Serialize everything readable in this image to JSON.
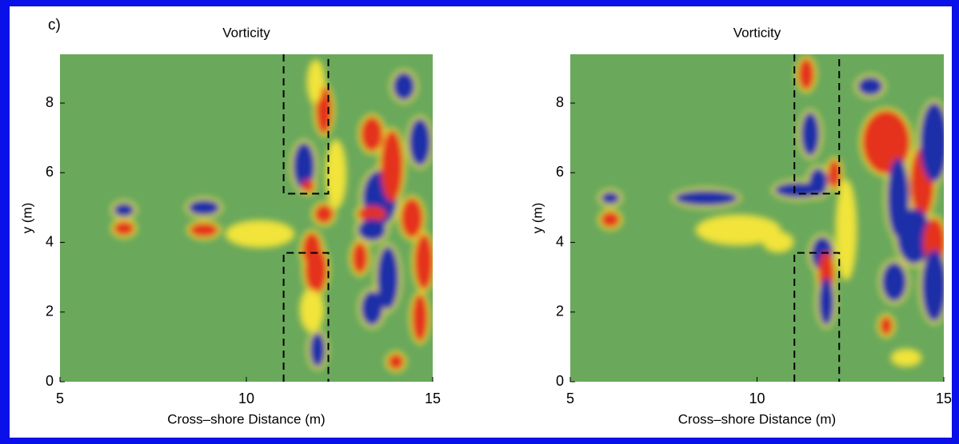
{
  "panel_label": "c)",
  "chart_data": [
    {
      "type": "field",
      "title": "Vorticity",
      "x_label": "Cross–shore Distance (m)",
      "y_label": "y (m)",
      "xlim": [
        5,
        15
      ],
      "xticks": [
        5,
        10,
        15
      ],
      "ylim": [
        0,
        9.4
      ],
      "yticks": [
        0,
        2,
        4,
        6,
        8
      ]
    },
    {
      "type": "field",
      "title": "Vorticity",
      "x_label": "Cross–shore Distance (m)",
      "y_label": "y (m)",
      "xlim": [
        5,
        15
      ],
      "xticks": [
        5,
        10,
        15
      ],
      "ylim": [
        0,
        9.4
      ],
      "yticks": [
        0,
        2,
        4,
        6,
        8
      ]
    }
  ]
}
